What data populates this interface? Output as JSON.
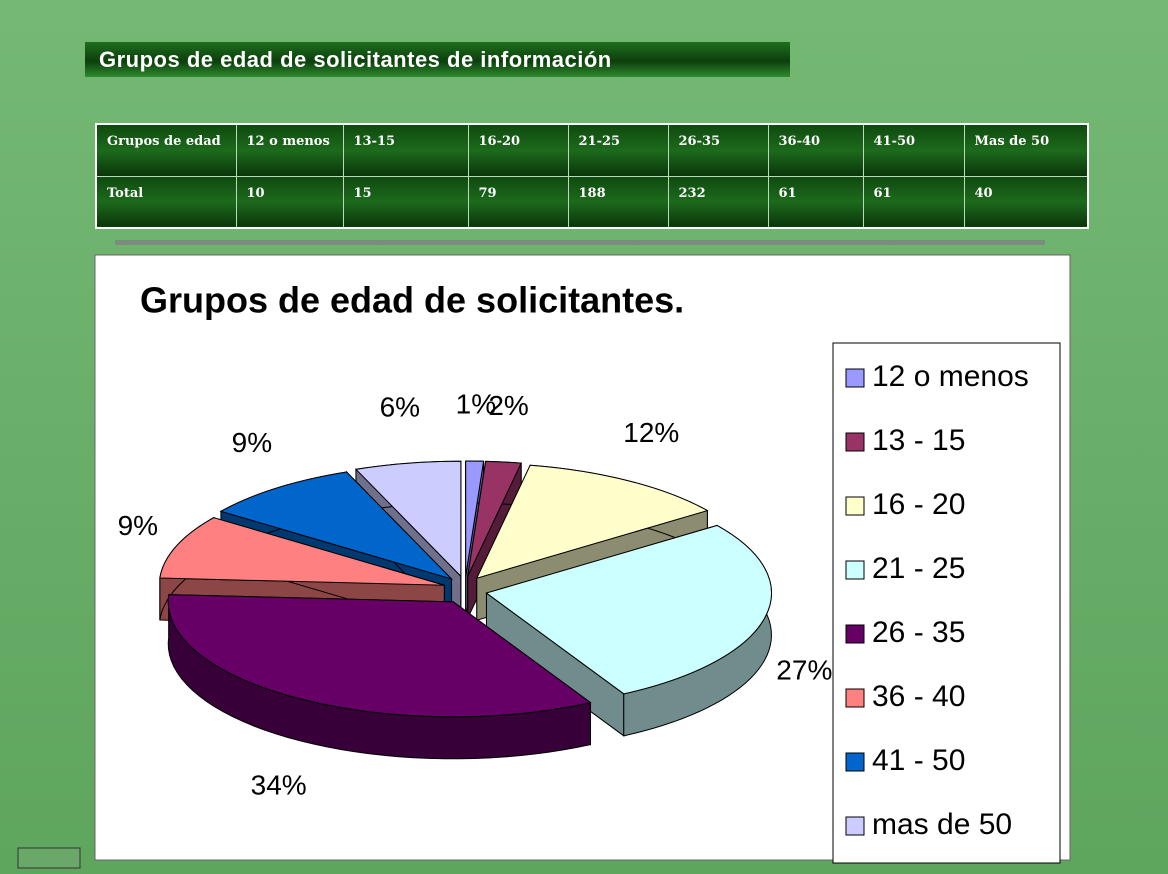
{
  "header": {
    "title": "Grupos de edad de solicitantes de información"
  },
  "table": {
    "rows": [
      [
        "Grupos de edad",
        "12 o menos",
        "13-15",
        "16-20",
        "21-25",
        "26-35",
        "36-40",
        "41-50",
        "Mas de 50"
      ],
      [
        "Total",
        "10",
        "15",
        "79",
        "188",
        "232",
        "61",
        "61",
        "40"
      ]
    ]
  },
  "chart_data": {
    "type": "pie",
    "title": "Grupos de edad de solicitantes.",
    "categories": [
      "12 o menos",
      "13 - 15",
      "16 - 20",
      "21 - 25",
      "26 - 35",
      "36 - 40",
      "41 - 50",
      "mas de 50"
    ],
    "values": [
      1,
      2,
      12,
      27,
      34,
      9,
      9,
      6
    ],
    "value_labels": [
      "1%",
      "2%",
      "12%",
      "27%",
      "34%",
      "9%",
      "9%",
      "6%"
    ],
    "colors": [
      "#9999ff",
      "#993366",
      "#ffffcc",
      "#ccffff",
      "#660066",
      "#ff8080",
      "#0066cc",
      "#ccccff"
    ],
    "legend": "right"
  }
}
